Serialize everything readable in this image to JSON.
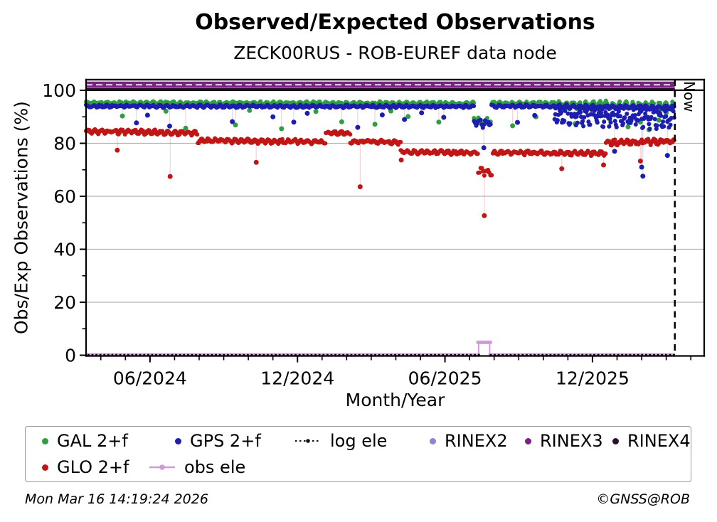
{
  "title": "Observed/Expected Observations",
  "subtitle": "ZECK00RUS - ROB-EUREF data node",
  "now_label": "Now",
  "footer": {
    "timestamp": "Mon Mar 16 14:19:24 2026",
    "copyright": "©GNSS@ROB"
  },
  "legend": {
    "rows": [
      [
        {
          "label": "GAL 2+f",
          "marker": "dot",
          "color": "#2f9e41"
        },
        {
          "label": "GPS 2+f",
          "marker": "dot",
          "color": "#1e1eae"
        },
        {
          "label": "log ele",
          "marker": "dashdot-line",
          "color": "#111111"
        },
        {
          "label": "RINEX2",
          "marker": "dot",
          "color": "#8a86d2"
        },
        {
          "label": "RINEX3",
          "marker": "dot",
          "color": "#7b2382"
        },
        {
          "label": "RINEX4",
          "marker": "dot",
          "color": "#2d1030"
        }
      ],
      [
        {
          "label": "GLO 2+f",
          "marker": "dot",
          "color": "#c01616"
        },
        {
          "label": "obs ele",
          "marker": "line-dot",
          "color": "#cf9ad8"
        }
      ]
    ]
  },
  "chart_data": {
    "type": "scatter",
    "title": "Observed/Expected Observations",
    "subtitle": "ZECK00RUS - ROB-EUREF data node",
    "xlabel": "Month/Year",
    "ylabel": "Obs/Exp Observations (%)",
    "x_unit": "months since 2024-03-15 (plot left edge)",
    "xlim": [
      0,
      25.15
    ],
    "ylim": [
      -0.6,
      104
    ],
    "grid": "horizontal-major",
    "grid_y": [
      20,
      40,
      60,
      80
    ],
    "yticks": [
      0,
      20,
      40,
      60,
      80,
      100
    ],
    "yticks_minor": [
      10,
      30,
      50,
      70,
      90
    ],
    "xticks": [
      {
        "t": 2.6,
        "label": "06/2024"
      },
      {
        "t": 8.6,
        "label": "12/2024"
      },
      {
        "t": 14.6,
        "label": "06/2025"
      },
      {
        "t": 20.6,
        "label": "12/2025"
      }
    ],
    "x_minor_first": 0.6,
    "x_minor_step": 1,
    "now_marker": {
      "t": 23.95,
      "label": "Now",
      "style": "dashed-vertical"
    },
    "ref_lines": {
      "hundred_line": {
        "v": 100.05,
        "t0": 0,
        "t1": 25.15,
        "color": "#000000"
      },
      "rinex3_band": {
        "v_top": 103.3,
        "v_bottom": 100.9,
        "t0": 0,
        "t1": 23.95,
        "color": "#7b2382"
      },
      "rinex2_dashed": {
        "v": 102.1,
        "t0": 0,
        "t1": 23.95,
        "color": "#d9cdf0"
      },
      "rinex4_line": {
        "v": 100.5,
        "t0": 0,
        "t1": 23.95,
        "color": "#2d1030"
      },
      "obs_ele": {
        "v": 0.1,
        "t0": 0,
        "t1": 23.95,
        "color": "#cf9ad8",
        "gap": [
          16.03,
          16.37
        ],
        "bump": {
          "t0": 15.97,
          "t1": 16.42,
          "v": 4.85
        }
      },
      "log_ele": {
        "v": 0.1,
        "t0": 0,
        "t1": 23.95,
        "style": "dotted",
        "color": "#000000"
      }
    },
    "series": [
      {
        "name": "GAL 2+f",
        "color": "#2f9e41",
        "seed": 101,
        "vmax": 96.6,
        "segments": [
          {
            "t0": 0.0,
            "t1": 15.78,
            "v0": 95.2,
            "v1": 95.0,
            "amp": 0.55
          },
          {
            "t0": 15.78,
            "t1": 16.5,
            "v0": 88.6,
            "v1": 88.2,
            "amp": 1.2,
            "dt": 0.045
          },
          {
            "t0": 16.5,
            "t1": 19.1,
            "v0": 95.1,
            "v1": 95.0,
            "amp": 0.55
          },
          {
            "t0": 19.1,
            "t1": 23.95,
            "v0": 94.7,
            "v1": 94.0,
            "amp": 1.25
          }
        ],
        "outliers": [
          [
            1.48,
            90.3
          ],
          [
            3.25,
            92.1
          ],
          [
            4.05,
            85.7
          ],
          [
            6.08,
            86.9
          ],
          [
            6.65,
            92.4
          ],
          [
            7.95,
            85.5
          ],
          [
            9.35,
            92.0
          ],
          [
            10.4,
            88.1
          ],
          [
            11.75,
            87.2
          ],
          [
            12.4,
            92.2
          ],
          [
            13.1,
            90.1
          ],
          [
            14.35,
            88.0
          ],
          [
            17.35,
            86.6
          ],
          [
            18.3,
            90.0
          ],
          [
            19.9,
            87.4
          ],
          [
            20.9,
            91.0
          ],
          [
            21.3,
            89.1
          ],
          [
            22.05,
            86.2
          ],
          [
            22.55,
            88.0
          ],
          [
            22.9,
            85.1
          ],
          [
            23.3,
            88.7
          ],
          [
            23.6,
            91.5
          ]
        ]
      },
      {
        "name": "GPS 2+f",
        "color": "#1e1eae",
        "seed": 202,
        "vmax": 95.2,
        "segments": [
          {
            "t0": 0.0,
            "t1": 15.78,
            "v0": 94.0,
            "v1": 93.9,
            "amp": 0.45
          },
          {
            "t0": 15.78,
            "t1": 16.5,
            "v0": 87.8,
            "v1": 87.5,
            "amp": 1.3,
            "dt": 0.045
          },
          {
            "t0": 16.5,
            "t1": 19.0,
            "v0": 94.0,
            "v1": 94.0,
            "amp": 0.5
          },
          {
            "t0": 19.0,
            "t1": 23.95,
            "v0": 93.9,
            "v1": 93.5,
            "amp": 0.6
          },
          {
            "t0": 19.0,
            "t1": 23.95,
            "v0": 90.6,
            "v1": 89.4,
            "amp": 3.1,
            "dt": 0.03
          }
        ],
        "outliers": [
          [
            2.05,
            87.7
          ],
          [
            2.5,
            90.6
          ],
          [
            3.4,
            86.5
          ],
          [
            5.95,
            88.2
          ],
          [
            7.6,
            90.0
          ],
          [
            8.45,
            88.0
          ],
          [
            9.0,
            91.3
          ],
          [
            11.05,
            86.0
          ],
          [
            12.05,
            90.7
          ],
          [
            12.95,
            89.0
          ],
          [
            13.65,
            91.5
          ],
          [
            14.55,
            89.8
          ],
          [
            16.18,
            78.3
          ],
          [
            17.55,
            87.9
          ],
          [
            18.25,
            90.5
          ],
          [
            21.5,
            77.0
          ],
          [
            22.6,
            71.0
          ],
          [
            22.65,
            67.6
          ],
          [
            23.65,
            75.4
          ]
        ]
      },
      {
        "name": "GLO 2+f",
        "color": "#c01616",
        "seed": 303,
        "vmax": 87.0,
        "segments": [
          {
            "t0": 0.0,
            "t1": 4.55,
            "v0": 84.6,
            "v1": 83.8,
            "amp": 0.75
          },
          {
            "t0": 4.55,
            "t1": 9.75,
            "v0": 81.0,
            "v1": 80.6,
            "amp": 0.75
          },
          {
            "t0": 9.75,
            "t1": 10.75,
            "v0": 84.0,
            "v1": 83.8,
            "amp": 0.55
          },
          {
            "t0": 10.75,
            "t1": 12.8,
            "v0": 80.8,
            "v1": 80.3,
            "amp": 0.65
          },
          {
            "t0": 12.8,
            "t1": 15.95,
            "v0": 76.7,
            "v1": 76.4,
            "amp": 0.65
          },
          {
            "t0": 15.95,
            "t1": 16.55,
            "v0": 69.5,
            "v1": 69.0,
            "amp": 1.1,
            "dt": 0.05
          },
          {
            "t0": 16.55,
            "t1": 21.15,
            "v0": 76.5,
            "v1": 76.2,
            "amp": 0.7
          },
          {
            "t0": 21.15,
            "t1": 23.95,
            "v0": 80.2,
            "v1": 80.8,
            "amp": 0.95
          }
        ],
        "outliers": [
          [
            1.27,
            77.4
          ],
          [
            3.42,
            67.5
          ],
          [
            6.92,
            72.8
          ],
          [
            11.15,
            63.6
          ],
          [
            12.82,
            73.7
          ],
          [
            16.2,
            52.7
          ],
          [
            19.35,
            70.4
          ],
          [
            21.05,
            71.8
          ],
          [
            22.55,
            73.3
          ]
        ]
      }
    ]
  }
}
